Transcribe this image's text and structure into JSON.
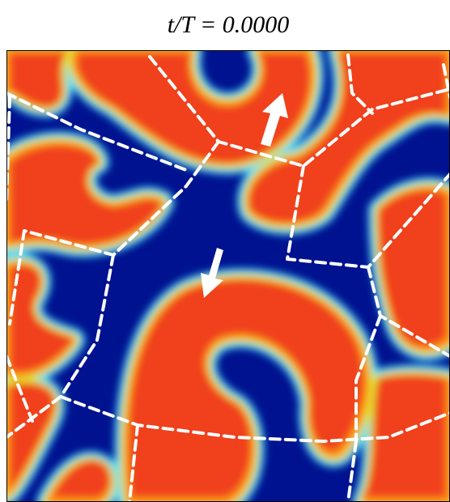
{
  "title": "t/T = 0.0000"
}
